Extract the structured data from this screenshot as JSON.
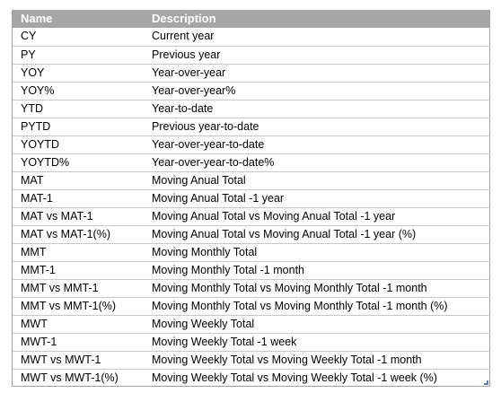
{
  "table": {
    "headers": {
      "name": "Name",
      "description": "Description"
    },
    "rows": [
      {
        "name": "CY",
        "description": "Current year"
      },
      {
        "name": "PY",
        "description": "Previous year"
      },
      {
        "name": "YOY",
        "description": "Year-over-year"
      },
      {
        "name": "YOY%",
        "description": "Year-over-year%"
      },
      {
        "name": "YTD",
        "description": "Year-to-date"
      },
      {
        "name": "PYTD",
        "description": "Previous year-to-date"
      },
      {
        "name": "YOYTD",
        "description": "Year-over-year-to-date"
      },
      {
        "name": "YOYTD%",
        "description": "Year-over-year-to-date%"
      },
      {
        "name": "MAT",
        "description": "Moving Anual Total"
      },
      {
        "name": "MAT-1",
        "description": "Moving Anual Total -1 year"
      },
      {
        "name": "MAT vs MAT-1",
        "description": "Moving Anual Total vs Moving Anual Total -1 year"
      },
      {
        "name": "MAT vs MAT-1(%)",
        "description": "Moving Anual Total vs Moving Anual Total -1 year (%)"
      },
      {
        "name": "MMT",
        "description": "Moving Monthly Total"
      },
      {
        "name": "MMT-1",
        "description": "Moving Monthly Total -1 month"
      },
      {
        "name": "MMT vs MMT-1",
        "description": "Moving Monthly Total vs Moving Monthly Total -1 month"
      },
      {
        "name": "MMT vs MMT-1(%)",
        "description": "Moving Monthly Total vs Moving Monthly Total -1 month (%)"
      },
      {
        "name": "MWT",
        "description": "Moving Weekly Total"
      },
      {
        "name": "MWT-1",
        "description": "Moving Weekly Total -1 week"
      },
      {
        "name": "MWT vs MWT-1",
        "description": "Moving Weekly Total vs Moving Weekly Total -1 month"
      },
      {
        "name": "MWT vs MWT-1(%)",
        "description": "Moving Weekly Total vs Moving Weekly Total -1 week (%)"
      }
    ]
  },
  "colors": {
    "header_background": "#a6a6a6",
    "header_text": "#ffffff",
    "row_divider": "#c8c8c8"
  }
}
